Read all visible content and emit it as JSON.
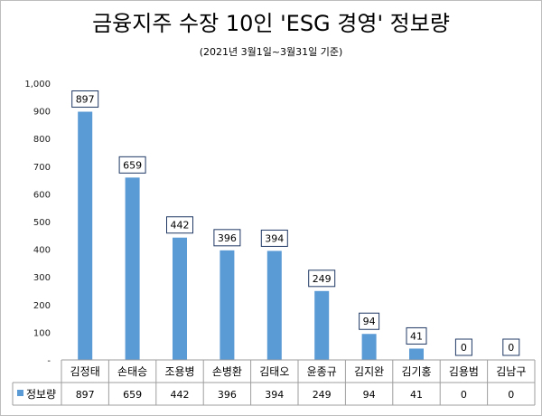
{
  "chart_data": {
    "type": "bar",
    "title": "금융지주 수장 10인 'ESG 경영' 정보량",
    "subtitle": "(2021년 3월1일~3월31일 기준)",
    "categories": [
      "김정태",
      "손태승",
      "조용병",
      "손병환",
      "김태오",
      "윤종규",
      "김지완",
      "김기홍",
      "김용범",
      "김남구"
    ],
    "series": [
      {
        "name": "정보량",
        "values": [
          897,
          659,
          442,
          396,
          394,
          249,
          94,
          41,
          0,
          0
        ]
      }
    ],
    "ylim": [
      0,
      1000
    ],
    "yticks": [
      0,
      100,
      200,
      300,
      400,
      500,
      600,
      700,
      800,
      900,
      1000
    ],
    "ytick_labels": [
      "-",
      "100",
      "200",
      "300",
      "400",
      "500",
      "600",
      "700",
      "800",
      "900",
      "1,000"
    ],
    "grid": false,
    "legend": "data-table-left",
    "data_labels": true,
    "bar_color": "#5b9bd5",
    "data_table": true
  }
}
